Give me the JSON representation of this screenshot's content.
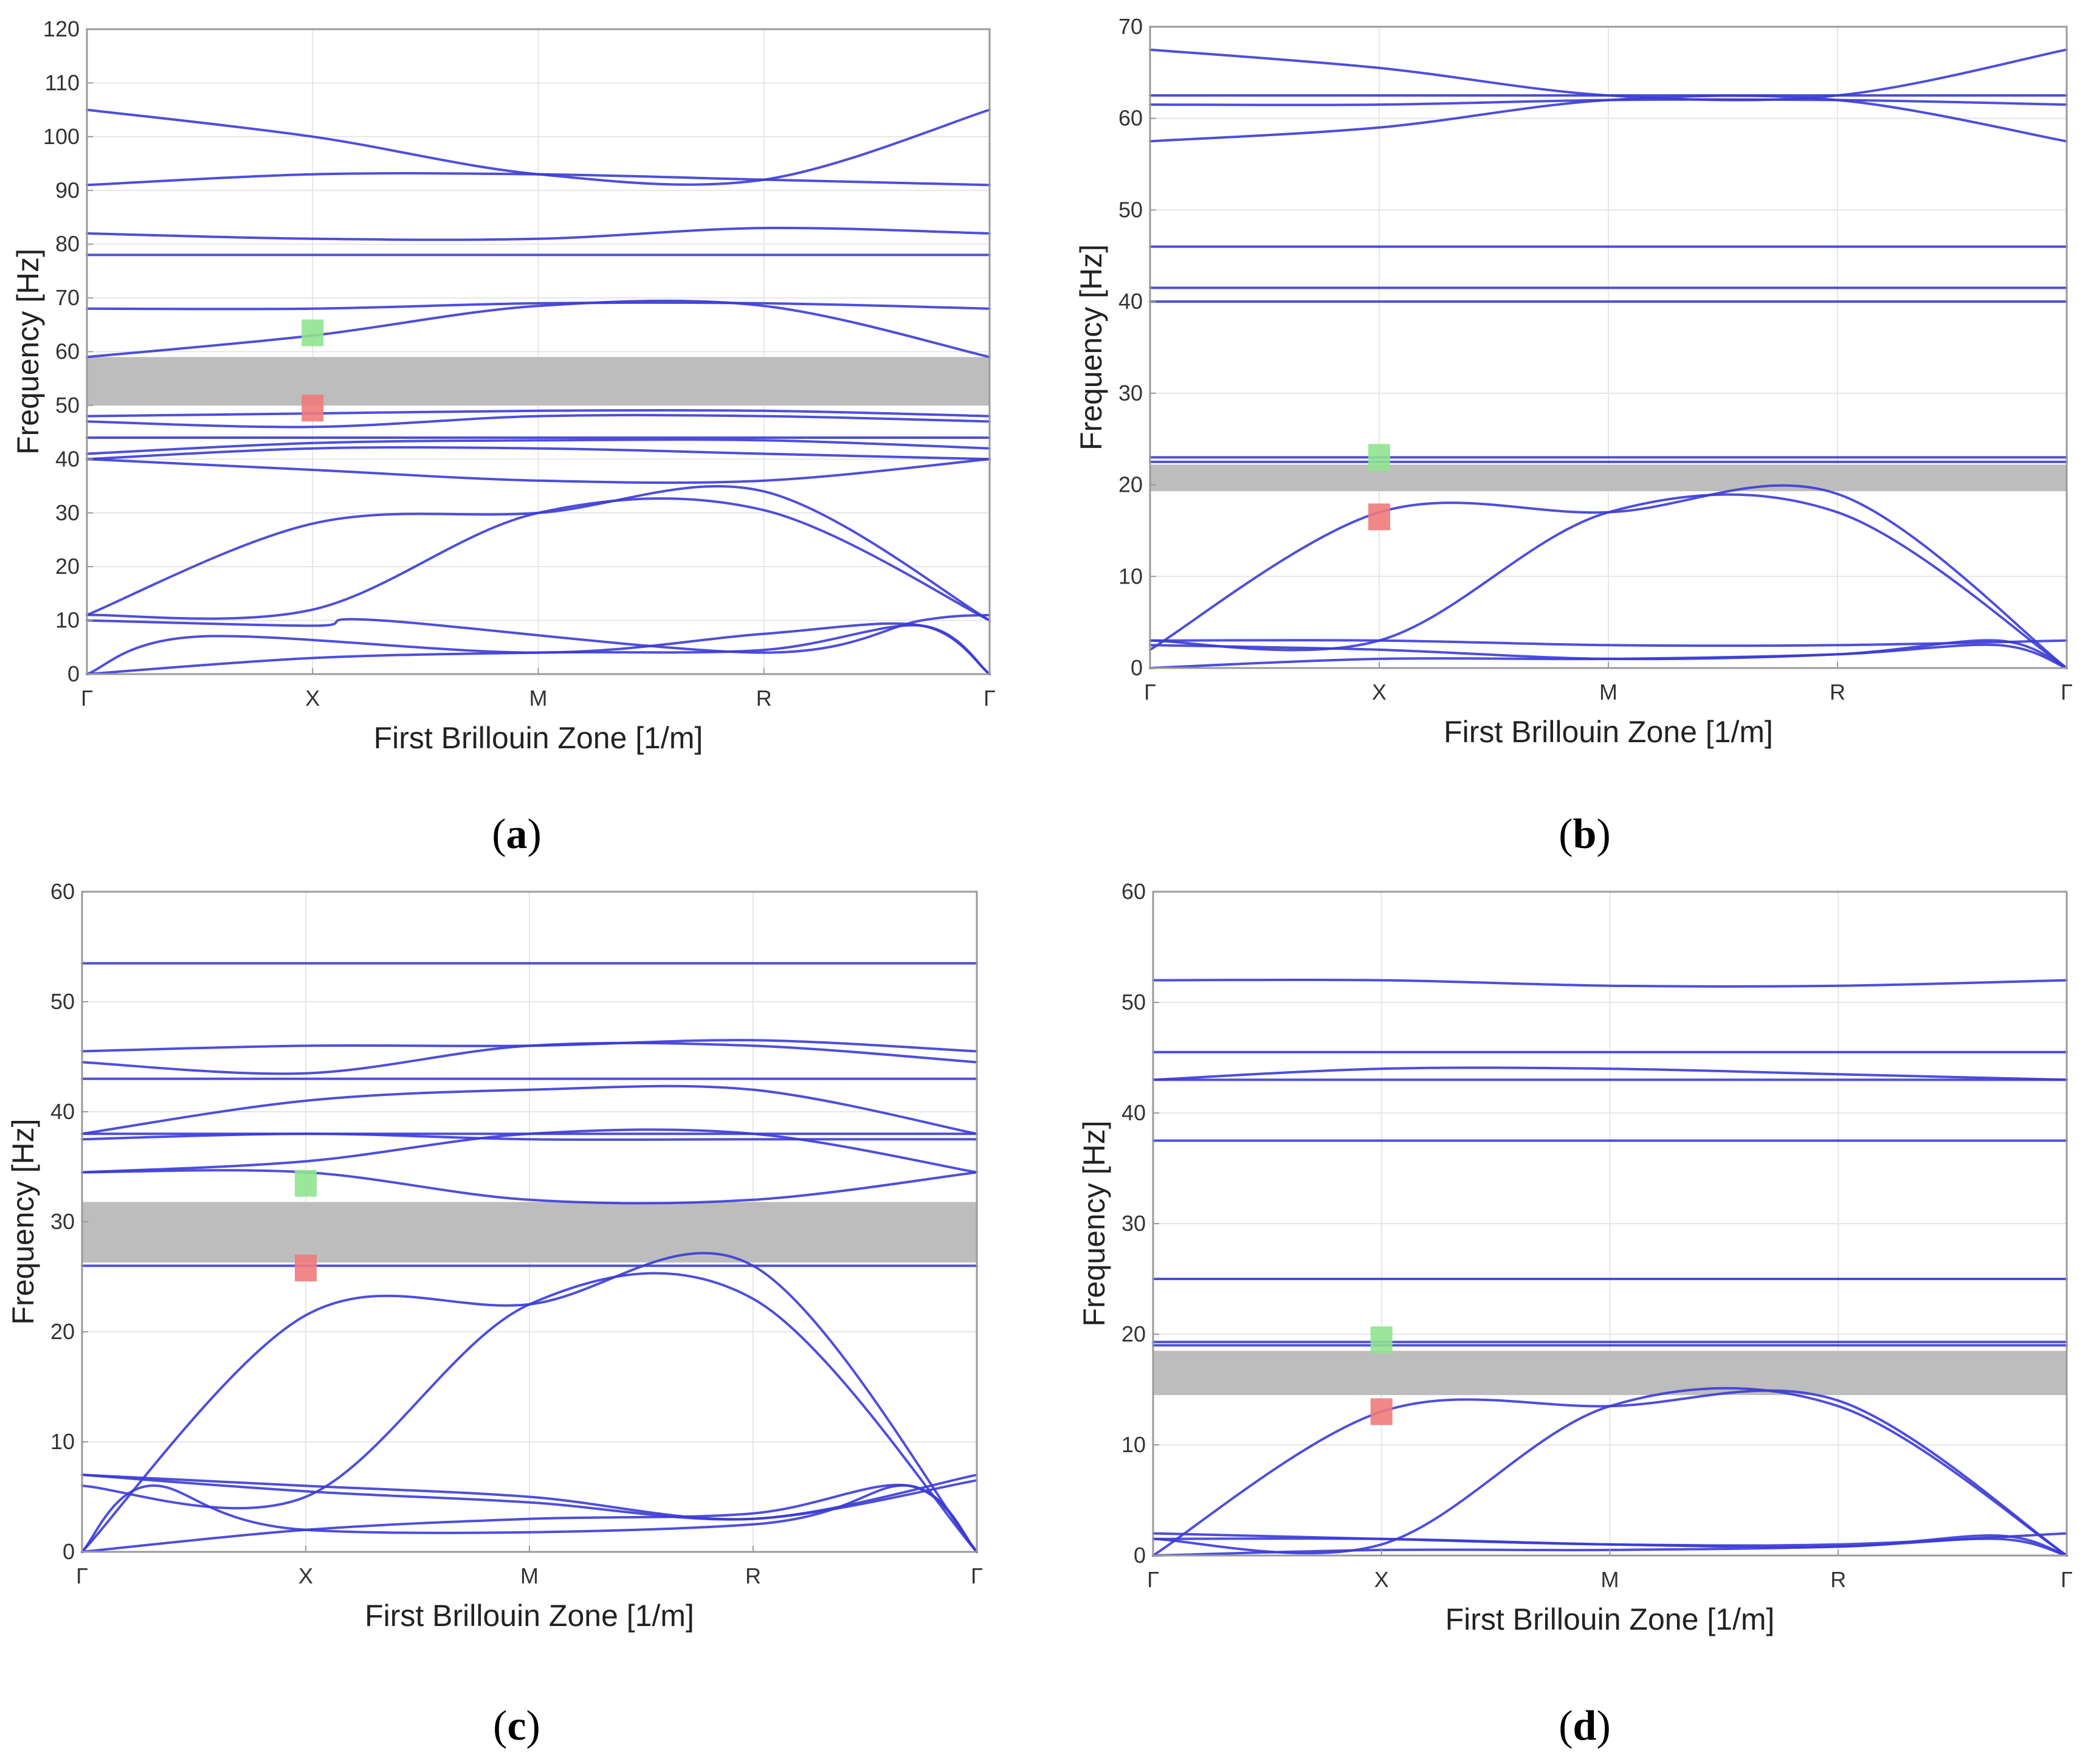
{
  "colors": {
    "band_line": "#3b3bd6",
    "gap_fill": "#bdbdbd",
    "grid": "#e6e6e6",
    "frame": "#9a9a9a",
    "marker_green": "#8fe38f",
    "marker_red": "#f07a7a"
  },
  "chart_data": [
    {
      "type": "line",
      "panel": "a",
      "caption_letter": "a",
      "xlabel": "First Brillouin Zone [1/m]",
      "ylabel": "Frequency [Hz]",
      "x_ticks": [
        "Γ",
        "X",
        "M",
        "R",
        "Γ"
      ],
      "ylim": [
        0,
        120
      ],
      "y_ticks": [
        "0",
        "10",
        "20",
        "30",
        "40",
        "50",
        "60",
        "70",
        "80",
        "90",
        "100",
        "110",
        "120"
      ],
      "band_gap": [
        50,
        59
      ],
      "markers": [
        {
          "color": "green",
          "k": 1,
          "freq": 63.5
        },
        {
          "color": "red",
          "k": 1,
          "freq": 49.5
        }
      ],
      "k_positions": [
        0,
        1,
        2,
        3,
        4
      ],
      "series": [
        {
          "name": "band 1",
          "values": [
            0,
            3,
            4,
            4.5,
            9,
            0
          ],
          "k": [
            0,
            1,
            2,
            3,
            3.7,
            4
          ]
        },
        {
          "name": "band 2",
          "values": [
            0,
            7,
            4,
            7.5,
            9,
            0
          ],
          "k": [
            0,
            0.5,
            2,
            3,
            3.7,
            4
          ]
        },
        {
          "name": "band 3",
          "values": [
            10,
            9,
            10,
            4,
            10,
            11
          ],
          "k": [
            0,
            1,
            1.3,
            3,
            3.7,
            4
          ]
        },
        {
          "name": "band 4",
          "values": [
            11,
            12,
            30,
            30.5,
            10
          ],
          "k": [
            0,
            1,
            2,
            3,
            4
          ]
        },
        {
          "name": "band 5",
          "values": [
            11,
            28,
            30,
            34,
            10
          ],
          "k": [
            0,
            1,
            2,
            3,
            4
          ]
        },
        {
          "name": "band 6",
          "values": [
            40,
            38,
            36,
            36,
            40
          ],
          "k": [
            0,
            1,
            2,
            3,
            4
          ]
        },
        {
          "name": "band 7",
          "values": [
            40,
            42,
            42,
            41,
            40
          ],
          "k": [
            0,
            1,
            2,
            3,
            4
          ]
        },
        {
          "name": "band 8",
          "values": [
            41,
            43,
            43.5,
            43.5,
            42
          ],
          "k": [
            0,
            1,
            2,
            3,
            4
          ]
        },
        {
          "name": "band 9",
          "values": [
            44,
            44,
            44,
            44,
            44
          ],
          "k": [
            0,
            1,
            2,
            3,
            4
          ]
        },
        {
          "name": "band 10",
          "values": [
            47,
            46,
            48,
            48,
            47
          ],
          "k": [
            0,
            1,
            2,
            3,
            4
          ]
        },
        {
          "name": "band 11",
          "values": [
            48,
            48.5,
            49,
            49,
            48
          ],
          "k": [
            0,
            1,
            2,
            3,
            4
          ]
        },
        {
          "name": "band 12",
          "values": [
            59,
            63,
            68.5,
            68.5,
            59
          ],
          "k": [
            0,
            1,
            2,
            3,
            4
          ]
        },
        {
          "name": "band 13",
          "values": [
            68,
            68,
            69,
            69,
            68
          ],
          "k": [
            0,
            1,
            2,
            3,
            4
          ]
        },
        {
          "name": "band 14",
          "values": [
            78,
            78,
            78,
            78,
            78
          ],
          "k": [
            0,
            1,
            2,
            3,
            4
          ]
        },
        {
          "name": "band 15",
          "values": [
            82,
            81,
            81,
            83,
            82
          ],
          "k": [
            0,
            1,
            2,
            3,
            4
          ]
        },
        {
          "name": "band 16",
          "values": [
            91,
            93,
            93,
            92,
            91
          ],
          "k": [
            0,
            1,
            2,
            3,
            4
          ]
        },
        {
          "name": "band 17",
          "values": [
            105,
            100,
            93,
            92,
            105
          ],
          "k": [
            0,
            1,
            2,
            3,
            4
          ]
        }
      ]
    },
    {
      "type": "line",
      "panel": "b",
      "caption_letter": "b",
      "xlabel": "First Brillouin Zone [1/m]",
      "ylabel": "Frequency [Hz]",
      "x_ticks": [
        "Γ",
        "X",
        "M",
        "R",
        "Γ"
      ],
      "ylim": [
        0,
        70
      ],
      "y_ticks": [
        "0",
        "10",
        "20",
        "30",
        "40",
        "50",
        "60",
        "70"
      ],
      "band_gap": [
        19.3,
        22.2
      ],
      "markers": [
        {
          "color": "green",
          "k": 1,
          "freq": 23
        },
        {
          "color": "red",
          "k": 1,
          "freq": 16.5
        }
      ],
      "series": [
        {
          "name": "band 1",
          "values": [
            0,
            1,
            1,
            1.5,
            2.5,
            0
          ],
          "k": [
            0,
            1,
            2,
            3,
            3.7,
            4
          ]
        },
        {
          "name": "band 2",
          "values": [
            2.5,
            2,
            1,
            1.5,
            3,
            0
          ],
          "k": [
            0,
            1,
            2,
            3,
            3.7,
            4
          ]
        },
        {
          "name": "band 3",
          "values": [
            3,
            3,
            2.5,
            2.5,
            3
          ],
          "k": [
            0,
            1,
            2,
            3,
            4
          ]
        },
        {
          "name": "band 4",
          "values": [
            3,
            3,
            17,
            17,
            0
          ],
          "k": [
            0,
            1,
            2,
            3,
            4
          ]
        },
        {
          "name": "band 5",
          "values": [
            2,
            17,
            17,
            19,
            0
          ],
          "k": [
            0,
            1,
            2,
            3,
            4
          ]
        },
        {
          "name": "band 6",
          "values": [
            23,
            23,
            23,
            23,
            23
          ],
          "k": [
            0,
            1,
            2,
            3,
            4
          ]
        },
        {
          "name": "band 7",
          "values": [
            22.5,
            22.5,
            22.5,
            22.5,
            22.5
          ],
          "k": [
            0,
            1,
            2,
            3,
            4
          ]
        },
        {
          "name": "band 8",
          "values": [
            40,
            40,
            40,
            40,
            40
          ],
          "k": [
            0,
            1,
            2,
            3,
            4
          ]
        },
        {
          "name": "band 9",
          "values": [
            41.5,
            41.5,
            41.5,
            41.5,
            41.5
          ],
          "k": [
            0,
            1,
            2,
            3,
            4
          ]
        },
        {
          "name": "band 10",
          "values": [
            46,
            46,
            46,
            46,
            46
          ],
          "k": [
            0,
            1,
            2,
            3,
            4
          ]
        },
        {
          "name": "band 11",
          "values": [
            57.5,
            59,
            62,
            62,
            57.5
          ],
          "k": [
            0,
            1,
            2,
            3,
            4
          ]
        },
        {
          "name": "band 12",
          "values": [
            61.5,
            61.5,
            62,
            62,
            61.5
          ],
          "k": [
            0,
            1,
            2,
            3,
            4
          ]
        },
        {
          "name": "band 13",
          "values": [
            62.5,
            62.5,
            62.5,
            62.5,
            62.5
          ],
          "k": [
            0,
            1,
            2,
            3,
            4
          ]
        },
        {
          "name": "band 14",
          "values": [
            67.5,
            65.5,
            62.5,
            62.5,
            67.5
          ],
          "k": [
            0,
            1,
            2,
            3,
            4
          ]
        }
      ]
    },
    {
      "type": "line",
      "panel": "c",
      "caption_letter": "c",
      "xlabel": "First Brillouin Zone [1/m]",
      "ylabel": "Frequency [Hz]",
      "x_ticks": [
        "Γ",
        "X",
        "M",
        "R",
        "Γ"
      ],
      "ylim": [
        0,
        60
      ],
      "y_ticks": [
        "0",
        "10",
        "20",
        "30",
        "40",
        "50",
        "60"
      ],
      "band_gap": [
        26.3,
        31.8
      ],
      "markers": [
        {
          "color": "green",
          "k": 1,
          "freq": 33.5
        },
        {
          "color": "red",
          "k": 1,
          "freq": 25.8
        }
      ],
      "series": [
        {
          "name": "band 1",
          "values": [
            0,
            2,
            3,
            3.5,
            6,
            0
          ],
          "k": [
            0,
            1,
            2,
            3,
            3.7,
            4
          ]
        },
        {
          "name": "band 2",
          "values": [
            0,
            6,
            2,
            2.5,
            6,
            0
          ],
          "k": [
            0,
            0.3,
            1,
            3,
            3.7,
            4
          ]
        },
        {
          "name": "band 3",
          "values": [
            7,
            6,
            5,
            3,
            7
          ],
          "k": [
            0,
            1,
            2,
            3,
            4
          ]
        },
        {
          "name": "band 4",
          "values": [
            7,
            5.5,
            4.5,
            3,
            6.5
          ],
          "k": [
            0,
            1,
            2,
            3,
            4
          ]
        },
        {
          "name": "band 5",
          "values": [
            6,
            5,
            22.5,
            23,
            0
          ],
          "k": [
            0,
            1,
            2,
            3,
            4
          ]
        },
        {
          "name": "band 6",
          "values": [
            0,
            21.5,
            22.5,
            26,
            0
          ],
          "k": [
            0,
            1,
            2,
            3,
            4
          ]
        },
        {
          "name": "band 7",
          "values": [
            26,
            26,
            26,
            26,
            26
          ],
          "k": [
            0,
            1,
            2,
            3,
            4
          ]
        },
        {
          "name": "band 8",
          "values": [
            34.5,
            34.5,
            32,
            32,
            34.5
          ],
          "k": [
            0,
            1,
            2,
            3,
            4
          ]
        },
        {
          "name": "band 9",
          "values": [
            34.5,
            35.5,
            38,
            38,
            34.5
          ],
          "k": [
            0,
            1,
            2,
            3,
            4
          ]
        },
        {
          "name": "band 10",
          "values": [
            37.5,
            38,
            37.5,
            37.5,
            37.5
          ],
          "k": [
            0,
            1,
            2,
            3,
            4
          ]
        },
        {
          "name": "band 11",
          "values": [
            38,
            38,
            38,
            38,
            38
          ],
          "k": [
            0,
            1,
            2,
            3,
            4
          ]
        },
        {
          "name": "band 12",
          "values": [
            38,
            41,
            42,
            42,
            38
          ],
          "k": [
            0,
            1,
            2,
            3,
            4
          ]
        },
        {
          "name": "band 13",
          "values": [
            43,
            43,
            43,
            43,
            43
          ],
          "k": [
            0,
            1,
            2,
            3,
            4
          ]
        },
        {
          "name": "band 14",
          "values": [
            44.5,
            43.5,
            46,
            46,
            44.5
          ],
          "k": [
            0,
            1,
            2,
            3,
            4
          ]
        },
        {
          "name": "band 15",
          "values": [
            45.5,
            46,
            46,
            46.5,
            45.5
          ],
          "k": [
            0,
            1,
            2,
            3,
            4
          ]
        },
        {
          "name": "band 16",
          "values": [
            53.5,
            53.5,
            53.5,
            53.5,
            53.5
          ],
          "k": [
            0,
            1,
            2,
            3,
            4
          ]
        }
      ]
    },
    {
      "type": "line",
      "panel": "d",
      "caption_letter": "d",
      "xlabel": "First Brillouin Zone [1/m]",
      "ylabel": "Frequency [Hz]",
      "x_ticks": [
        "Γ",
        "X",
        "M",
        "R",
        "Γ"
      ],
      "ylim": [
        0,
        60
      ],
      "y_ticks": [
        "0",
        "10",
        "20",
        "30",
        "40",
        "50",
        "60"
      ],
      "band_gap": [
        14.5,
        18.5
      ],
      "markers": [
        {
          "color": "green",
          "k": 1,
          "freq": 19.5
        },
        {
          "color": "red",
          "k": 1,
          "freq": 13
        }
      ],
      "series": [
        {
          "name": "band 1",
          "values": [
            0,
            0.5,
            0.5,
            0.8,
            1.5,
            0
          ],
          "k": [
            0,
            1,
            2,
            3,
            3.7,
            4
          ]
        },
        {
          "name": "band 2",
          "values": [
            1.5,
            1.5,
            1,
            0.8,
            1.8,
            0
          ],
          "k": [
            0,
            1,
            2,
            3,
            3.7,
            4
          ]
        },
        {
          "name": "band 3",
          "values": [
            2,
            1.5,
            1,
            1,
            2
          ],
          "k": [
            0,
            1,
            2,
            3,
            4
          ]
        },
        {
          "name": "band 4",
          "values": [
            1.5,
            1,
            13.5,
            13.5,
            0
          ],
          "k": [
            0,
            1,
            2,
            3,
            4
          ]
        },
        {
          "name": "band 5",
          "values": [
            0,
            13,
            13.5,
            14,
            0
          ],
          "k": [
            0,
            1,
            2,
            3,
            4
          ]
        },
        {
          "name": "band 6",
          "values": [
            19,
            19,
            19,
            19,
            19
          ],
          "k": [
            0,
            1,
            2,
            3,
            4
          ]
        },
        {
          "name": "band 7",
          "values": [
            19.3,
            19.3,
            19.3,
            19.3,
            19.3
          ],
          "k": [
            0,
            1,
            2,
            3,
            4
          ]
        },
        {
          "name": "band 8",
          "values": [
            25,
            25,
            25,
            25,
            25
          ],
          "k": [
            0,
            1,
            2,
            3,
            4
          ]
        },
        {
          "name": "band 9",
          "values": [
            37.5,
            37.5,
            37.5,
            37.5,
            37.5
          ],
          "k": [
            0,
            1,
            2,
            3,
            4
          ]
        },
        {
          "name": "band 10",
          "values": [
            43,
            43,
            43,
            43,
            43
          ],
          "k": [
            0,
            1,
            2,
            3,
            4
          ]
        },
        {
          "name": "band 11",
          "values": [
            43,
            44,
            44,
            43.5,
            43
          ],
          "k": [
            0,
            1,
            2,
            3,
            4
          ]
        },
        {
          "name": "band 12",
          "values": [
            45.5,
            45.5,
            45.5,
            45.5,
            45.5
          ],
          "k": [
            0,
            1,
            2,
            3,
            4
          ]
        },
        {
          "name": "band 13",
          "values": [
            52,
            52,
            51.5,
            51.5,
            52
          ],
          "k": [
            0,
            1,
            2,
            3,
            4
          ]
        }
      ]
    }
  ]
}
